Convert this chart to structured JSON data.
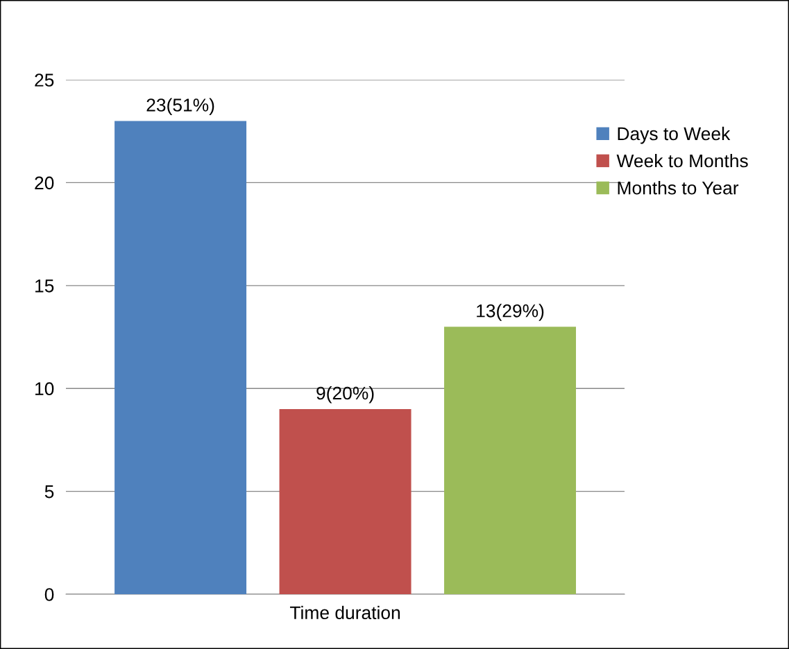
{
  "chart_data": {
    "type": "bar",
    "categories": [
      "Time duration"
    ],
    "series": [
      {
        "name": "Days to Week",
        "color": "#4f81bd",
        "values": [
          23
        ],
        "value_labels": [
          "23(51%)"
        ]
      },
      {
        "name": "Week to Months",
        "color": "#c0504d",
        "values": [
          9
        ],
        "value_labels": [
          "9(20%)"
        ]
      },
      {
        "name": "Months to Year",
        "color": "#9bbb59",
        "values": [
          13
        ],
        "value_labels": [
          "13(29%)"
        ]
      }
    ],
    "ylim": [
      0,
      25
    ],
    "yticks": [
      0,
      5,
      10,
      15,
      20,
      25
    ],
    "grid": "y",
    "legend": "right"
  }
}
